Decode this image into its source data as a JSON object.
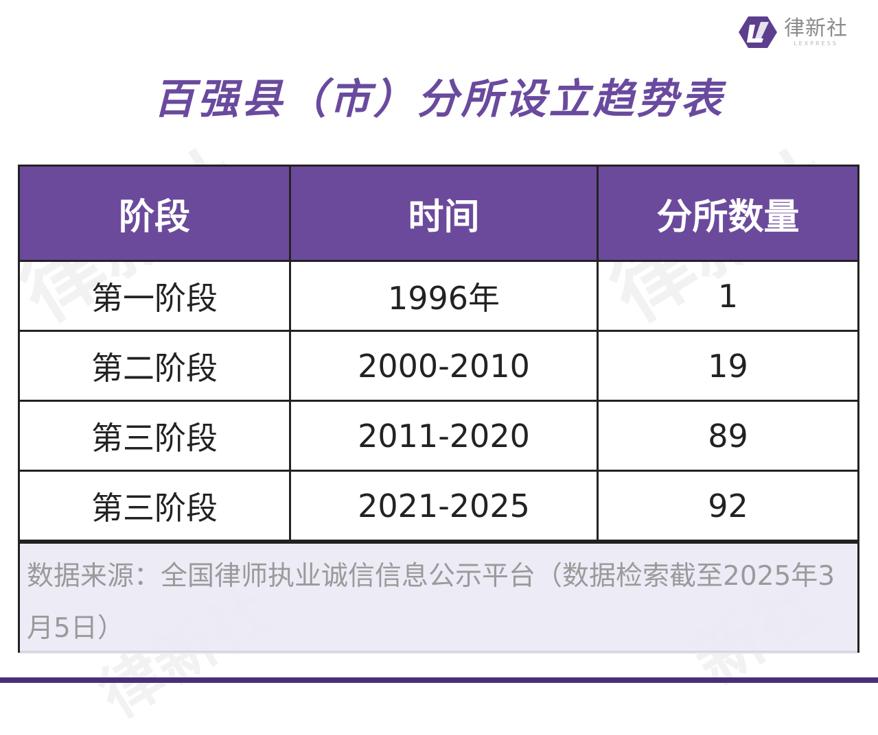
{
  "brand": {
    "name": "律新社",
    "sub": "LEXPRESS",
    "accent": "#6b4a9c"
  },
  "title": "百强县（市）分所设立趋势表",
  "table": {
    "headers": [
      "阶段",
      "时间",
      "分所数量"
    ],
    "rows": [
      [
        "第一阶段",
        "1996年",
        "1"
      ],
      [
        "第二阶段",
        "2000-2010",
        "19"
      ],
      [
        "第三阶段",
        "2011-2020",
        "89"
      ],
      [
        "第三阶段",
        "2021-2025",
        "92"
      ]
    ]
  },
  "source": "数据来源：全国律师执业诚信信息公示平台（数据检索截至2025年3月5日）"
}
